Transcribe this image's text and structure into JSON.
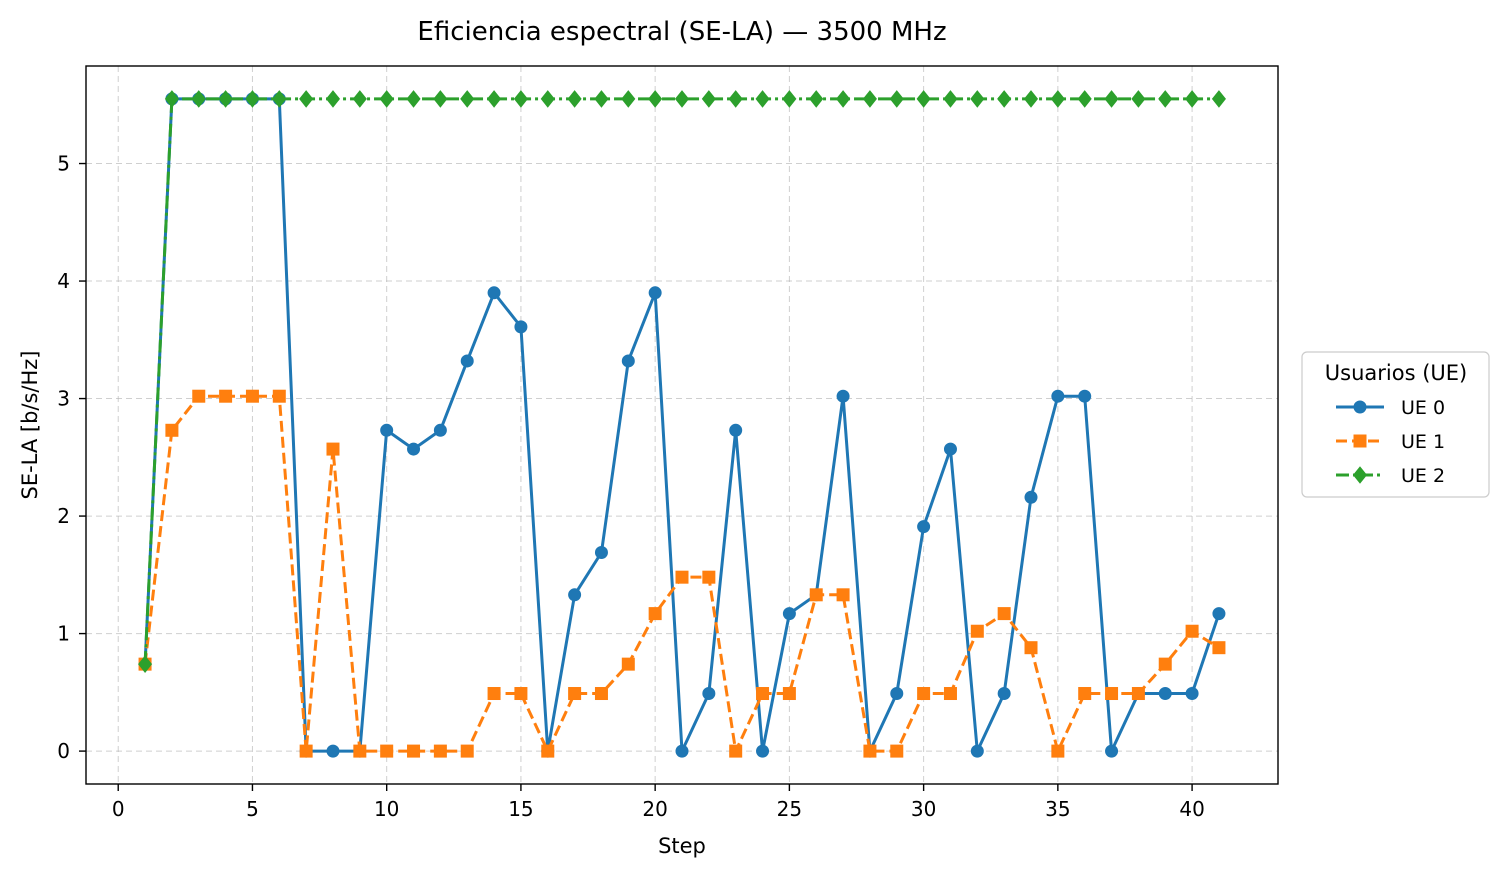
{
  "chart_data": {
    "type": "line",
    "title": "Eficiencia espectral (SE-LA) — 3500 MHz",
    "xlabel": "Step",
    "ylabel": "SE-LA [b/s/Hz]",
    "xlim": [
      -1.2,
      43.2
    ],
    "ylim": [
      -0.28,
      5.83
    ],
    "xticks": [
      0,
      5,
      10,
      15,
      20,
      25,
      30,
      35,
      40
    ],
    "yticks": [
      0,
      1,
      2,
      3,
      4,
      5
    ],
    "grid": true,
    "legend": {
      "title": "Usuarios (UE)",
      "placement": "outside-right"
    },
    "x": [
      1,
      2,
      3,
      4,
      5,
      6,
      7,
      8,
      9,
      10,
      11,
      12,
      13,
      14,
      15,
      16,
      17,
      18,
      19,
      20,
      21,
      22,
      23,
      24,
      25,
      26,
      27,
      28,
      29,
      30,
      31,
      32,
      33,
      34,
      35,
      36,
      37,
      38,
      39,
      40,
      41
    ],
    "series": [
      {
        "name": "UE 0",
        "color": "#1f77b4",
        "marker": "circle",
        "linestyle": "solid",
        "values": [
          0.74,
          5.55,
          5.55,
          5.55,
          5.55,
          5.55,
          0,
          0,
          0,
          2.73,
          2.57,
          2.73,
          3.32,
          3.9,
          3.61,
          0,
          1.33,
          1.69,
          3.32,
          3.9,
          0,
          0.49,
          2.73,
          0,
          1.17,
          1.33,
          3.02,
          0,
          0.49,
          1.91,
          2.57,
          0,
          0.49,
          2.16,
          3.02,
          3.02,
          0,
          0.49,
          0.49,
          0.49,
          1.17
        ]
      },
      {
        "name": "UE 1",
        "color": "#ff7f0e",
        "marker": "square",
        "linestyle": "dashed",
        "values": [
          0.74,
          2.73,
          3.02,
          3.02,
          3.02,
          3.02,
          0,
          2.57,
          0,
          0,
          0,
          0,
          0,
          0.49,
          0.49,
          0,
          0.49,
          0.49,
          0.74,
          1.17,
          1.48,
          1.48,
          0,
          0.49,
          0.49,
          1.33,
          1.33,
          0,
          0,
          0.49,
          0.49,
          1.02,
          1.17,
          0.88,
          0,
          0.49,
          0.49,
          0.49,
          0.74,
          1.02,
          0.88
        ]
      },
      {
        "name": "UE 2",
        "color": "#2ca02c",
        "marker": "diamond",
        "linestyle": "dashdot",
        "values": [
          0.74,
          5.55,
          5.55,
          5.55,
          5.55,
          5.55,
          5.55,
          5.55,
          5.55,
          5.55,
          5.55,
          5.55,
          5.55,
          5.55,
          5.55,
          5.55,
          5.55,
          5.55,
          5.55,
          5.55,
          5.55,
          5.55,
          5.55,
          5.55,
          5.55,
          5.55,
          5.55,
          5.55,
          5.55,
          5.55,
          5.55,
          5.55,
          5.55,
          5.55,
          5.55,
          5.55,
          5.55,
          5.55,
          5.55,
          5.55,
          5.55
        ]
      }
    ]
  }
}
